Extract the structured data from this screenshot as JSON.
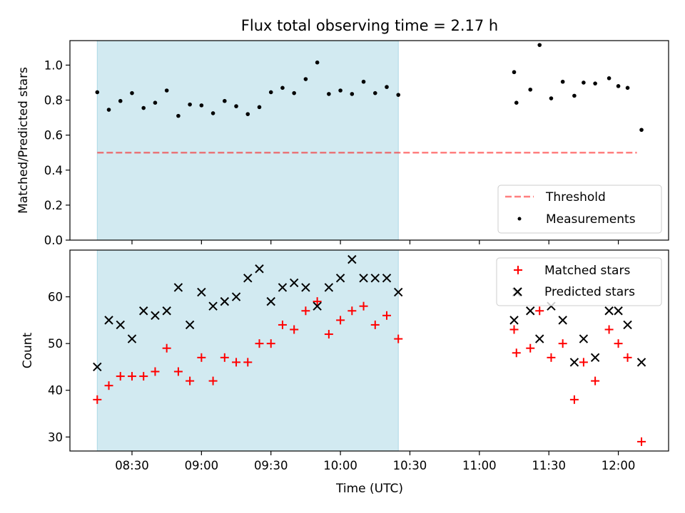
{
  "title": "Flux total observing time = 2.17 h",
  "colors": {
    "shade": "#add8e6",
    "threshold": "#ff0000",
    "measurements": "#000000",
    "matched": "#ff0000",
    "predicted": "#000000"
  },
  "chart_data": [
    {
      "type": "scatter",
      "title": "Flux total observing time = 2.17 h",
      "ylabel": "Matched/Predicted stars",
      "xlabel": "",
      "ylim": [
        0,
        1.14
      ],
      "yticks": [
        "0.0",
        "0.2",
        "0.4",
        "0.6",
        "0.8",
        "1.0"
      ],
      "shaded_span": [
        "08:15",
        "10:25"
      ],
      "legend": {
        "placement": "lower right",
        "threshold": "Threshold",
        "measurements": "Measurements"
      },
      "threshold": {
        "value": 0.5,
        "x_start": "08:15",
        "x_end": "12:08"
      },
      "series": [
        {
          "name": "Measurements",
          "x": [
            "08:15",
            "08:20",
            "08:25",
            "08:30",
            "08:35",
            "08:40",
            "08:45",
            "08:50",
            "08:55",
            "09:00",
            "09:05",
            "09:10",
            "09:15",
            "09:20",
            "09:25",
            "09:30",
            "09:35",
            "09:40",
            "09:45",
            "09:50",
            "09:55",
            "10:00",
            "10:05",
            "10:10",
            "10:15",
            "10:20",
            "10:25",
            "11:15",
            "11:16",
            "11:22",
            "11:26",
            "11:31",
            "11:36",
            "11:41",
            "11:45",
            "11:50",
            "11:56",
            "12:00",
            "12:04",
            "12:10"
          ],
          "y": [
            0.845,
            0.745,
            0.795,
            0.84,
            0.755,
            0.785,
            0.855,
            0.71,
            0.775,
            0.77,
            0.725,
            0.795,
            0.765,
            0.72,
            0.76,
            0.845,
            0.87,
            0.84,
            0.92,
            1.015,
            0.835,
            0.855,
            0.835,
            0.905,
            0.84,
            0.875,
            0.83,
            0.96,
            0.785,
            0.86,
            1.115,
            0.81,
            0.905,
            0.825,
            0.9,
            0.895,
            0.925,
            0.88,
            0.87,
            0.63
          ]
        }
      ]
    },
    {
      "type": "scatter",
      "title": "",
      "xlabel": "Time (UTC)",
      "ylabel": "Count",
      "ylim": [
        27,
        70
      ],
      "yticks": [
        "30",
        "40",
        "50",
        "60"
      ],
      "xticks": [
        "08:30",
        "09:00",
        "09:30",
        "10:00",
        "10:30",
        "11:00",
        "11:30",
        "12:00"
      ],
      "shaded_span": [
        "08:15",
        "10:25"
      ],
      "legend": {
        "placement": "upper right",
        "matched": "Matched stars",
        "predicted": "Predicted stars"
      },
      "series": [
        {
          "name": "Matched stars",
          "x": [
            "08:15",
            "08:20",
            "08:25",
            "08:30",
            "08:35",
            "08:40",
            "08:45",
            "08:50",
            "08:55",
            "09:00",
            "09:05",
            "09:10",
            "09:15",
            "09:20",
            "09:25",
            "09:30",
            "09:35",
            "09:40",
            "09:45",
            "09:50",
            "09:55",
            "10:00",
            "10:05",
            "10:10",
            "10:15",
            "10:20",
            "10:25",
            "11:15",
            "11:16",
            "11:22",
            "11:26",
            "11:31",
            "11:36",
            "11:41",
            "11:45",
            "11:50",
            "11:56",
            "12:00",
            "12:04",
            "12:10"
          ],
          "y": [
            38,
            41,
            43,
            43,
            43,
            44,
            49,
            44,
            42,
            47,
            42,
            47,
            46,
            46,
            50,
            50,
            54,
            53,
            57,
            59,
            52,
            55,
            57,
            58,
            54,
            56,
            51,
            53,
            48,
            49,
            57,
            47,
            50,
            38,
            46,
            42,
            53,
            50,
            47,
            29
          ]
        },
        {
          "name": "Predicted stars",
          "x": [
            "08:15",
            "08:20",
            "08:25",
            "08:30",
            "08:35",
            "08:40",
            "08:45",
            "08:50",
            "08:55",
            "09:00",
            "09:05",
            "09:10",
            "09:15",
            "09:20",
            "09:25",
            "09:30",
            "09:35",
            "09:40",
            "09:45",
            "09:50",
            "09:55",
            "10:00",
            "10:05",
            "10:10",
            "10:15",
            "10:20",
            "10:25",
            "11:15",
            "11:16",
            "11:22",
            "11:26",
            "11:31",
            "11:36",
            "11:41",
            "11:45",
            "11:50",
            "11:56",
            "12:00",
            "12:04",
            "12:10"
          ],
          "y": [
            45,
            55,
            54,
            51,
            57,
            56,
            57,
            62,
            54,
            61,
            58,
            59,
            60,
            64,
            66,
            59,
            62,
            63,
            62,
            58,
            62,
            64,
            68,
            64,
            64,
            64,
            61,
            55,
            61,
            57,
            51,
            58,
            55,
            46,
            51,
            47,
            57,
            57,
            54,
            46
          ]
        }
      ]
    }
  ]
}
